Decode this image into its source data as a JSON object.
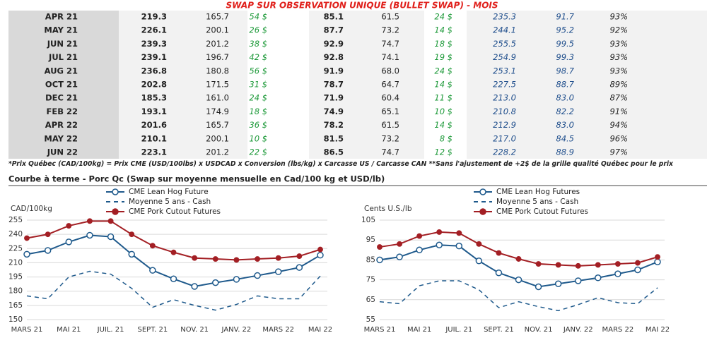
{
  "table": {
    "title": "SWAP SUR OBSERVATION UNIQUE (BULLET SWAP) - MOIS",
    "rows": [
      [
        "APR 21",
        "219.3",
        "165.7",
        "54 $",
        "85.1",
        "61.5",
        "24 $",
        "235.3",
        "91.7",
        "93%"
      ],
      [
        "MAY 21",
        "226.1",
        "200.1",
        "26 $",
        "87.7",
        "73.2",
        "14 $",
        "244.1",
        "95.2",
        "92%"
      ],
      [
        "JUN 21",
        "239.3",
        "201.2",
        "38 $",
        "92.9",
        "74.7",
        "18 $",
        "255.5",
        "99.5",
        "93%"
      ],
      [
        "JUL 21",
        "239.1",
        "196.7",
        "42 $",
        "92.8",
        "74.1",
        "19 $",
        "254.9",
        "99.3",
        "93%"
      ],
      [
        "AUG 21",
        "236.8",
        "180.8",
        "56 $",
        "91.9",
        "68.0",
        "24 $",
        "253.1",
        "98.7",
        "93%"
      ],
      [
        "OCT 21",
        "202.8",
        "171.5",
        "31 $",
        "78.7",
        "64.7",
        "14 $",
        "227.5",
        "88.7",
        "89%"
      ],
      [
        "DEC 21",
        "185.3",
        "161.0",
        "24 $",
        "71.9",
        "60.4",
        "11 $",
        "213.0",
        "83.0",
        "87%"
      ],
      [
        "FEB 22",
        "193.1",
        "174.9",
        "18 $",
        "74.9",
        "65.1",
        "10 $",
        "210.8",
        "82.2",
        "91%"
      ],
      [
        "APR 22",
        "201.6",
        "165.7",
        "36 $",
        "78.2",
        "61.5",
        "14 $",
        "212.9",
        "83.0",
        "94%"
      ],
      [
        "MAY 22",
        "210.1",
        "200.1",
        "10 $",
        "81.5",
        "73.2",
        "8 $",
        "217.0",
        "84.5",
        "96%"
      ],
      [
        "JUN 22",
        "223.1",
        "201.2",
        "22 $",
        "86.5",
        "74.7",
        "12 $",
        "228.2",
        "88.9",
        "97%"
      ]
    ]
  },
  "note": "*Prix Québec (CAD/100kg) = Prix CME (USD/100lbs) x USDCAD x Conversion (lbs/kg) x Carcasse US / Carcasse CAN **Sans l'ajustement de +2$ de la grille qualité Québec pour le prix",
  "section_title": "Courbe à terme - Porc Qc (Swap sur moyenne mensuelle en Cad/100 kg et USD/lb)",
  "chart_data": [
    {
      "type": "line",
      "y_label": "CAD/100kg",
      "categories": [
        "MARS 21",
        null,
        "MAI 21",
        null,
        "JUIL. 21",
        null,
        "SEPT. 21",
        null,
        "NOV. 21",
        null,
        "JANV. 22",
        null,
        "MARS 22",
        null,
        "MAI 22"
      ],
      "ylim": [
        150,
        255
      ],
      "yticks": [
        150,
        165,
        180,
        195,
        210,
        225,
        240,
        255
      ],
      "grid": true,
      "series": [
        {
          "name": "CME Lean Hog Future",
          "color": "#1f5a8c",
          "marker": "open",
          "dashed": false,
          "values": [
            219,
            223,
            232,
            239,
            237.5,
            219,
            202,
            193,
            185,
            189,
            192.5,
            196.5,
            200.5,
            205,
            218
          ]
        },
        {
          "name": "Moyenne 5 ans - Cash",
          "color": "#1f5a8c",
          "marker": "none",
          "dashed": true,
          "values": [
            175,
            172,
            195,
            201,
            198,
            183,
            163,
            171,
            165,
            160,
            166,
            175,
            172,
            172,
            196
          ]
        },
        {
          "name": "CME Pork Cutout Futures",
          "color": "#a31f24",
          "marker": "filled",
          "dashed": false,
          "values": [
            236,
            240,
            249,
            254,
            254,
            240,
            228,
            221,
            215,
            214,
            213,
            214,
            215,
            217,
            224
          ]
        }
      ]
    },
    {
      "type": "line",
      "y_label": "Cents U.S./lb",
      "categories": [
        "MARS 21",
        null,
        "MAI 21",
        null,
        "JUIL. 21",
        null,
        "SEPT. 21",
        null,
        "NOV. 21",
        null,
        "JANV. 22",
        null,
        "MARS 22",
        null,
        "MAI 22"
      ],
      "ylim": [
        55,
        105
      ],
      "yticks": [
        55,
        65,
        75,
        85,
        95,
        105
      ],
      "grid": true,
      "series": [
        {
          "name": "CME Lean Hog Futures",
          "color": "#1f5a8c",
          "marker": "open",
          "dashed": false,
          "values": [
            85,
            86.5,
            90,
            92.5,
            92,
            84.5,
            78.5,
            75,
            71.5,
            73,
            74.5,
            76,
            78,
            80,
            84
          ]
        },
        {
          "name": "Moyenne 5 ans - Cash",
          "color": "#1f5a8c",
          "marker": "none",
          "dashed": true,
          "values": [
            64,
            63,
            72,
            74.5,
            74.5,
            70,
            61,
            64,
            61.5,
            59.5,
            62.5,
            66,
            63.5,
            63,
            71
          ]
        },
        {
          "name": "CME Pork Cutout Futures",
          "color": "#a31f24",
          "marker": "filled",
          "dashed": false,
          "values": [
            91.5,
            93,
            97,
            99,
            98.5,
            93,
            88.5,
            85.5,
            83,
            82.5,
            82,
            82.5,
            83,
            83.5,
            86.5
          ]
        }
      ]
    }
  ]
}
